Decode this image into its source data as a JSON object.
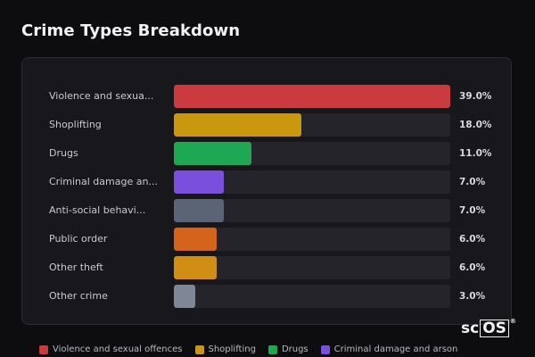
{
  "title": "Crime Types Breakdown",
  "rows": [
    {
      "label": "Violence and sexua...",
      "value": 39.0,
      "value_text": "39.0%",
      "color": "#c93b3f"
    },
    {
      "label": "Shoplifting",
      "value": 18.0,
      "value_text": "18.0%",
      "color": "#c9980f"
    },
    {
      "label": "Drugs",
      "value": 11.0,
      "value_text": "11.0%",
      "color": "#1fa854"
    },
    {
      "label": "Criminal damage an...",
      "value": 7.0,
      "value_text": "7.0%",
      "color": "#7a4fdc"
    },
    {
      "label": "Anti-social behavi...",
      "value": 7.0,
      "value_text": "7.0%",
      "color": "#5b6475"
    },
    {
      "label": "Public order",
      "value": 6.0,
      "value_text": "6.0%",
      "color": "#d4641c"
    },
    {
      "label": "Other theft",
      "value": 6.0,
      "value_text": "6.0%",
      "color": "#d18e14"
    },
    {
      "label": "Other crime",
      "value": 3.0,
      "value_text": "3.0%",
      "color": "#7f8797"
    }
  ],
  "legend": [
    {
      "label": "Violence and sexual offences",
      "color": "#c93b3f"
    },
    {
      "label": "Shoplifting",
      "color": "#c9980f"
    },
    {
      "label": "Drugs",
      "color": "#1fa854"
    },
    {
      "label": "Criminal damage and arson",
      "color": "#7a4fdc"
    }
  ],
  "logo": {
    "prefix": "sc",
    "boxed": "OS",
    "mark": "®"
  }
}
